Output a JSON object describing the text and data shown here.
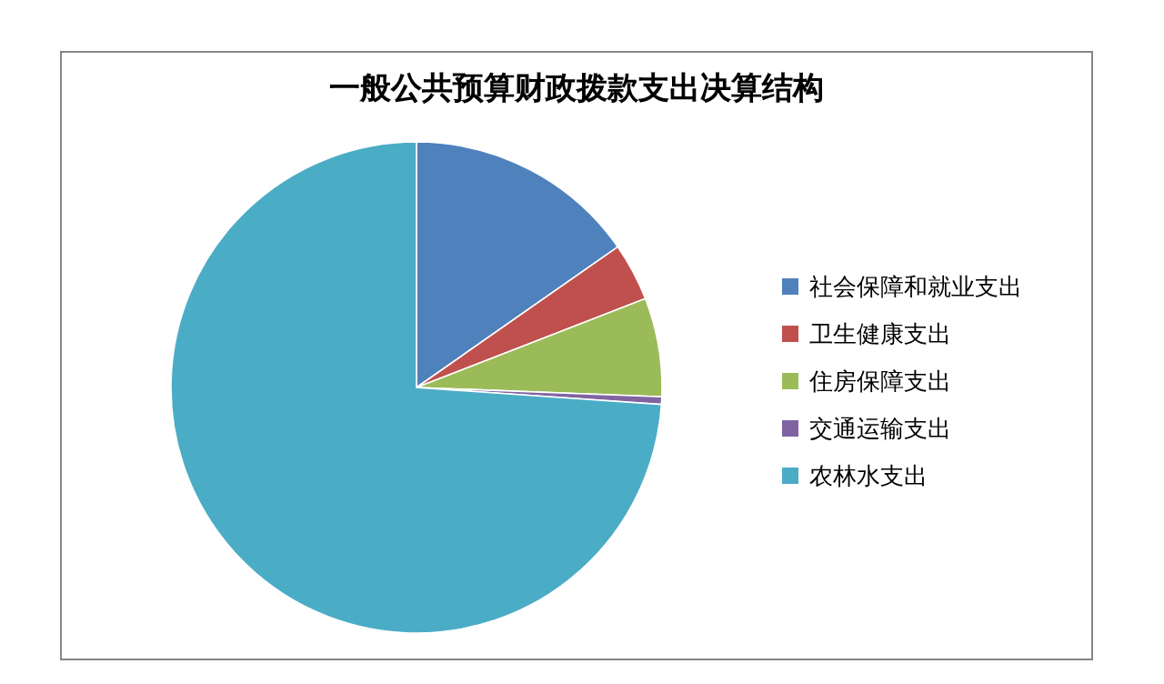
{
  "chart_data": {
    "type": "pie",
    "title": "一般公共预算财政拨款支出决算结构",
    "categories": [
      "社会保障和就业支出",
      "卫生健康支出",
      "住房保障支出",
      "交通运输支出",
      "农林水支出"
    ],
    "values": [
      15.3,
      3.8,
      6.5,
      0.5,
      73.9
    ],
    "colors": [
      "#4f81bd",
      "#c0504d",
      "#9bbb59",
      "#8064a2",
      "#4bacc6"
    ],
    "legend": "right"
  }
}
